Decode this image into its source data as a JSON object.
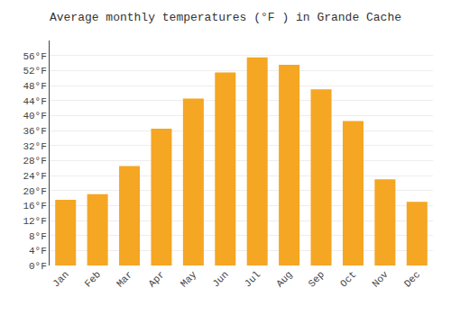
{
  "chart_data": {
    "type": "bar",
    "title": "Average monthly temperatures (°F ) in Grande Cache",
    "categories": [
      "Jan",
      "Feb",
      "Mar",
      "Apr",
      "May",
      "Jun",
      "Jul",
      "Aug",
      "Sep",
      "Oct",
      "Nov",
      "Dec"
    ],
    "values": [
      17.5,
      19.0,
      26.5,
      36.5,
      44.5,
      51.5,
      55.5,
      53.5,
      47.0,
      38.5,
      23.0,
      17.0
    ],
    "color": "#F5A623",
    "ylim": [
      0,
      60
    ],
    "yticks": [
      {
        "value": 0,
        "label": "0°F"
      },
      {
        "value": 4,
        "label": "4°F"
      },
      {
        "value": 8,
        "label": "8°F"
      },
      {
        "value": 12,
        "label": "12°F"
      },
      {
        "value": 16,
        "label": "16°F"
      },
      {
        "value": 20,
        "label": "20°F"
      },
      {
        "value": 24,
        "label": "24°F"
      },
      {
        "value": 28,
        "label": "28°F"
      },
      {
        "value": 32,
        "label": "32°F"
      },
      {
        "value": 36,
        "label": "36°F"
      },
      {
        "value": 40,
        "label": "40°F"
      },
      {
        "value": 44,
        "label": "44°F"
      },
      {
        "value": 48,
        "label": "48°F"
      },
      {
        "value": 52,
        "label": "52°F"
      },
      {
        "value": 56,
        "label": "56°F"
      }
    ],
    "grid": true
  }
}
